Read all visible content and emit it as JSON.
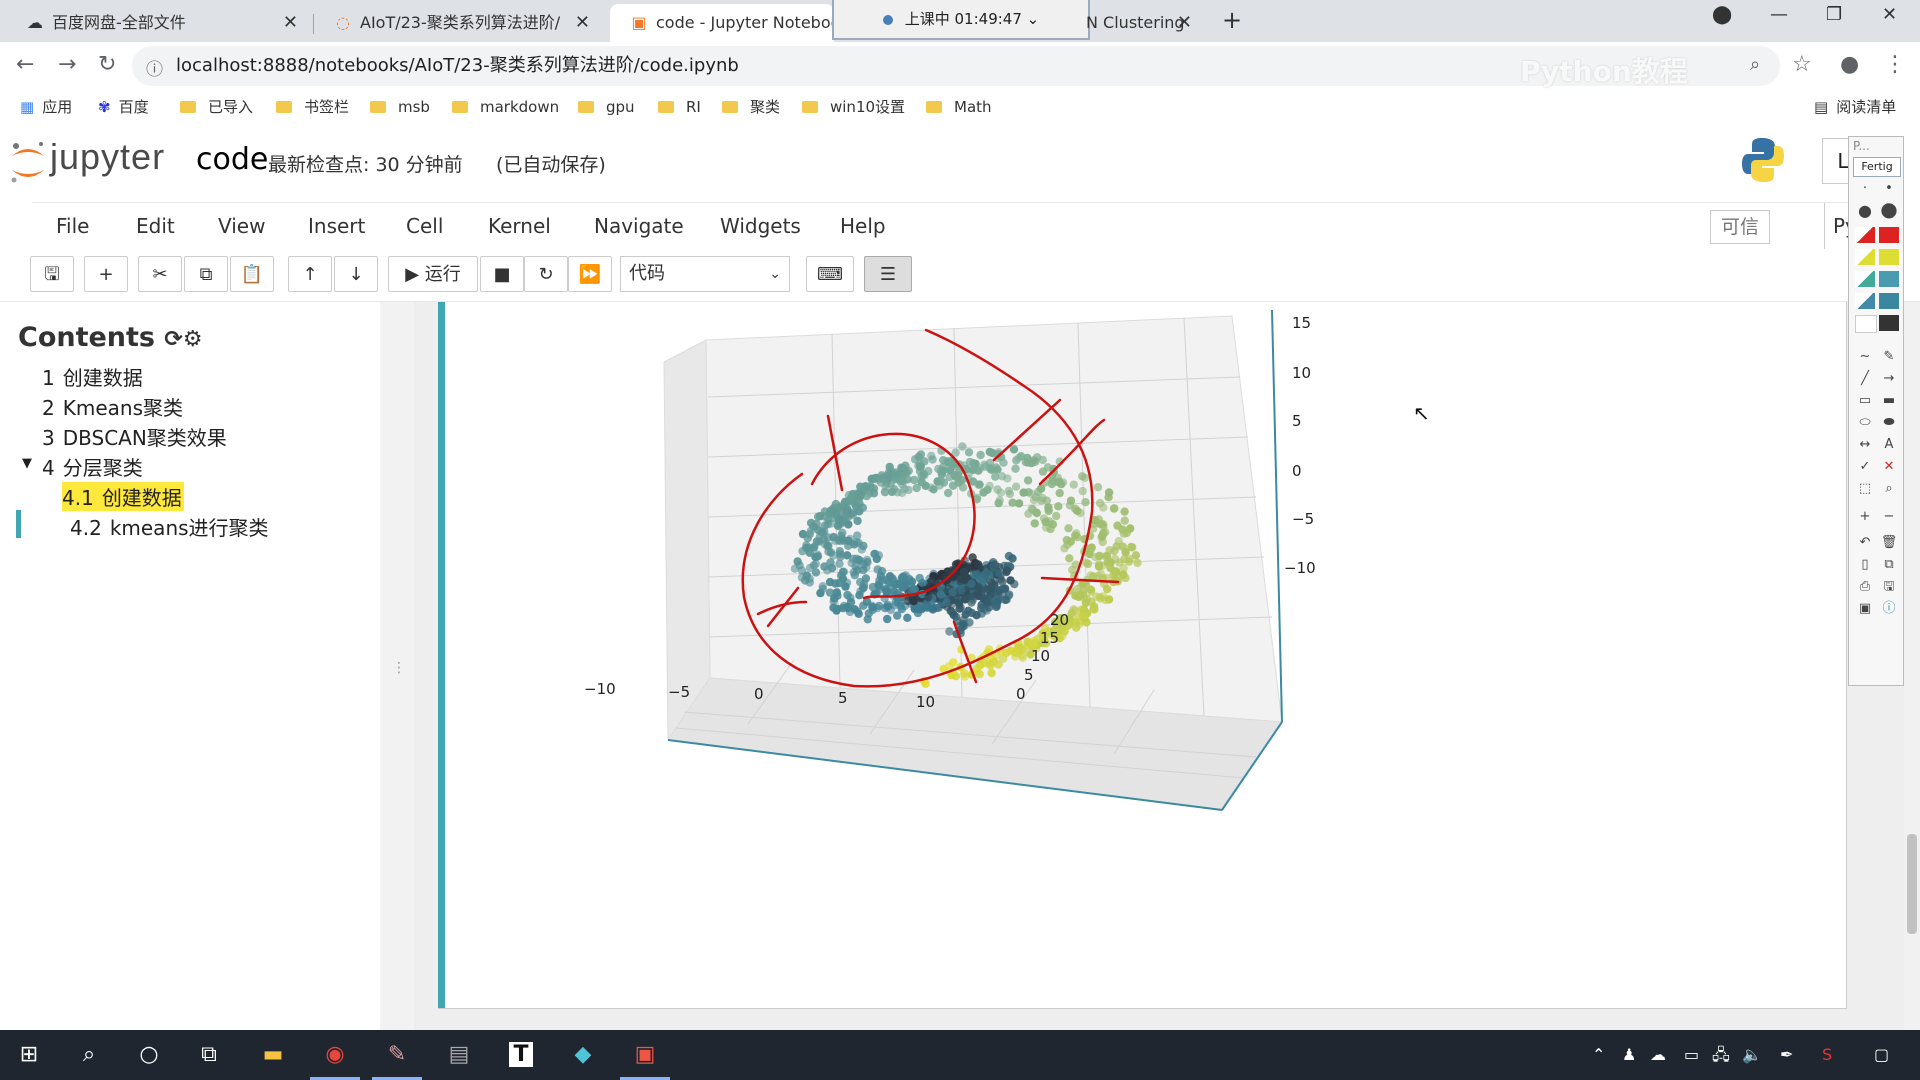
{
  "browser": {
    "tabs": [
      {
        "title": "百度网盘-全部文件",
        "icon": "baidu-netdisk-icon"
      },
      {
        "title": "AIoT/23-聚类系列算法进阶/",
        "icon": "jupyter-icon"
      },
      {
        "title": "code - Jupyter Notebook",
        "icon": "jupyter-notebook-icon",
        "active": true
      },
      {
        "title": "N Clustering",
        "icon": "page-icon"
      }
    ],
    "recording_overlay": "上课中 01:49:47",
    "url": "localhost:8888/notebooks/AIoT/23-聚类系列算法进阶/code.ipynb",
    "watermark": "Python教程",
    "bookmarks": [
      "应用",
      "百度",
      "已导入",
      "书签栏",
      "msb",
      "markdown",
      "gpu",
      "RI",
      "聚类",
      "win10设置",
      "Math"
    ],
    "reading_list": "阅读清单"
  },
  "jupyter": {
    "logo_text": "jupyter",
    "notebook_name": "code",
    "checkpoint": "最新检查点: 30 分钟前",
    "autosave": "(已自动保存)",
    "menu": [
      "File",
      "Edit",
      "View",
      "Insert",
      "Cell",
      "Kernel",
      "Navigate",
      "Widgets",
      "Help"
    ],
    "trusted": "可信",
    "kernel": "Pytho",
    "toolbar": {
      "run_label": "运行",
      "cell_type": "代码"
    },
    "logout_partial": "L"
  },
  "toc": {
    "title": "Contents",
    "items": [
      {
        "num": "1",
        "label": "创建数据",
        "level": 1
      },
      {
        "num": "2",
        "label": "Kmeans聚类",
        "level": 1
      },
      {
        "num": "3",
        "label": "DBSCAN聚类效果",
        "level": 1
      },
      {
        "num": "4",
        "label": "分层聚类",
        "level": 1,
        "expanded": true
      },
      {
        "num": "4.1",
        "label": "创建数据",
        "level": 2,
        "highlighted": true
      },
      {
        "num": "4.2",
        "label": "kmeans进行聚类",
        "level": 2
      }
    ]
  },
  "plot": {
    "z_ticks": [
      "15",
      "10",
      "5",
      "0",
      "−5",
      "−10"
    ],
    "x_ticks": [
      "−10",
      "−5",
      "0",
      "5",
      "10"
    ],
    "y_ticks": [
      "20",
      "15",
      "10",
      "5",
      "0"
    ]
  },
  "annotation_tool": {
    "title": "P...",
    "done_label": "Fertig"
  },
  "taskbar": {
    "apps": [
      "start-icon",
      "search-icon",
      "cortana-icon",
      "task-view-icon",
      "file-explorer-icon",
      "chrome-icon",
      "paint-icon",
      "terminal-icon",
      "typora-icon",
      "app-icon",
      "pdf-icon"
    ]
  },
  "colors": {
    "jupyter_orange": "#f37726",
    "cell_selected": "#42a5b3",
    "toc_highlight": "#ffe83c",
    "annotation_red": "#cc1111",
    "cluster_teal": "#3d7f95",
    "cluster_yellow": "#e4de2c",
    "cluster_dark": "#2a2f38"
  }
}
